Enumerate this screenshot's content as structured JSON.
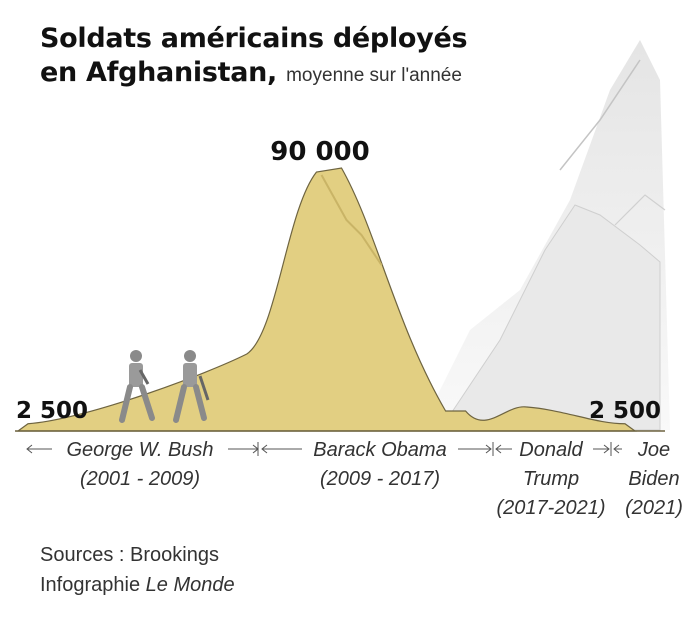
{
  "title": {
    "main_line1": "Soldats américains déployés",
    "main_line2": "en Afghanistan,",
    "subtitle": "moyenne sur l'année"
  },
  "chart_data": {
    "type": "area",
    "title": "Soldats américains déployés en Afghanistan, moyenne sur l'année",
    "xlabel": "",
    "ylabel": "",
    "x": [
      2001,
      2009,
      2011,
      2017,
      2021
    ],
    "values": [
      2500,
      30000,
      90000,
      9000,
      2500
    ],
    "ylim": [
      0,
      100000
    ],
    "annotations": {
      "start_value": "2 500",
      "peak_value": "90 000",
      "end_value": "2 500"
    },
    "eras": [
      {
        "name": "George W. Bush",
        "years": "(2001 - 2009)"
      },
      {
        "name": "Barack Obama",
        "years": "(2009 - 2017)"
      },
      {
        "name1": "Donald",
        "name2": "Trump",
        "years": "(2017-2021)"
      },
      {
        "name1": "Joe",
        "name2": "Biden",
        "years": "(2021)"
      }
    ],
    "colors": {
      "area": "#e2cf82",
      "area_shadow": "#c9b466",
      "outline": "#6e6440",
      "background_mountains": "#e6e6e6",
      "soldier": "#8a8a8a"
    }
  },
  "footer": {
    "sources": "Sources : Brookings",
    "credit_prefix": "Infographie",
    "credit_name": "Le Monde"
  }
}
